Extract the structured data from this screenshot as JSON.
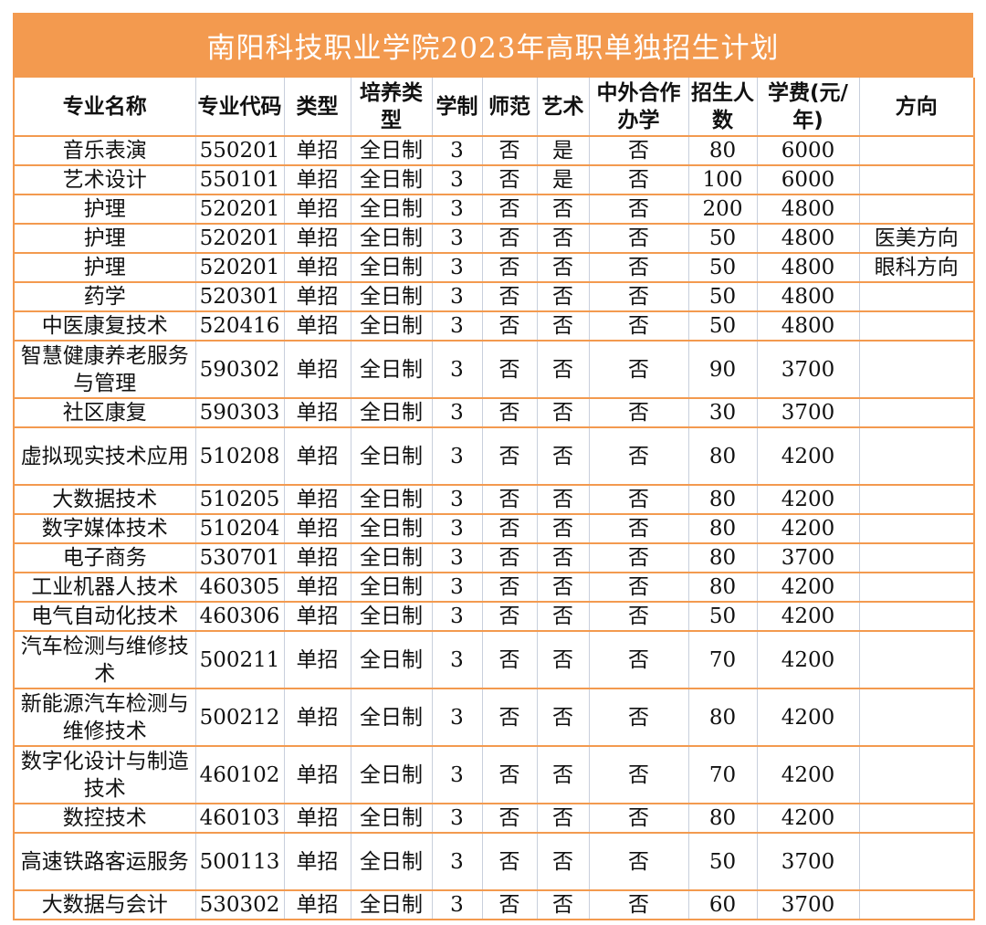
{
  "title": "南阳科技职业学院2023年高职单独招生计划",
  "columns": [
    "专业名称",
    "专业代码",
    "类型",
    "培养类型",
    "学制",
    "师范",
    "艺术",
    "中外合作办学",
    "招生人数",
    "学费(元/年)",
    "方向"
  ],
  "rows": [
    [
      "音乐表演",
      "550201",
      "单招",
      "全日制",
      "3",
      "否",
      "是",
      "否",
      "80",
      "6000",
      ""
    ],
    [
      "艺术设计",
      "550101",
      "单招",
      "全日制",
      "3",
      "否",
      "是",
      "否",
      "100",
      "6000",
      ""
    ],
    [
      "护理",
      "520201",
      "单招",
      "全日制",
      "3",
      "否",
      "否",
      "否",
      "200",
      "4800",
      ""
    ],
    [
      "护理",
      "520201",
      "单招",
      "全日制",
      "3",
      "否",
      "否",
      "否",
      "50",
      "4800",
      "医美方向"
    ],
    [
      "护理",
      "520201",
      "单招",
      "全日制",
      "3",
      "否",
      "否",
      "否",
      "50",
      "4800",
      "眼科方向"
    ],
    [
      "药学",
      "520301",
      "单招",
      "全日制",
      "3",
      "否",
      "否",
      "否",
      "50",
      "4800",
      ""
    ],
    [
      "中医康复技术",
      "520416",
      "单招",
      "全日制",
      "3",
      "否",
      "否",
      "否",
      "50",
      "4800",
      ""
    ],
    [
      "智慧健康养老服务与管理",
      "590302",
      "单招",
      "全日制",
      "3",
      "否",
      "否",
      "否",
      "90",
      "3700",
      ""
    ],
    [
      "社区康复",
      "590303",
      "单招",
      "全日制",
      "3",
      "否",
      "否",
      "否",
      "30",
      "3700",
      ""
    ],
    [
      "虚拟现实技术应用",
      "510208",
      "单招",
      "全日制",
      "3",
      "否",
      "否",
      "否",
      "80",
      "4200",
      ""
    ],
    [
      "大数据技术",
      "510205",
      "单招",
      "全日制",
      "3",
      "否",
      "否",
      "否",
      "80",
      "4200",
      ""
    ],
    [
      "数字媒体技术",
      "510204",
      "单招",
      "全日制",
      "3",
      "否",
      "否",
      "否",
      "80",
      "4200",
      ""
    ],
    [
      "电子商务",
      "530701",
      "单招",
      "全日制",
      "3",
      "否",
      "否",
      "否",
      "80",
      "3700",
      ""
    ],
    [
      "工业机器人技术",
      "460305",
      "单招",
      "全日制",
      "3",
      "否",
      "否",
      "否",
      "80",
      "4200",
      ""
    ],
    [
      "电气自动化技术",
      "460306",
      "单招",
      "全日制",
      "3",
      "否",
      "否",
      "否",
      "50",
      "4200",
      ""
    ],
    [
      "汽车检测与维修技术",
      "500211",
      "单招",
      "全日制",
      "3",
      "否",
      "否",
      "否",
      "70",
      "4200",
      ""
    ],
    [
      "新能源汽车检测与维修技术",
      "500212",
      "单招",
      "全日制",
      "3",
      "否",
      "否",
      "否",
      "80",
      "4200",
      ""
    ],
    [
      "数字化设计与制造技术",
      "460102",
      "单招",
      "全日制",
      "3",
      "否",
      "否",
      "否",
      "70",
      "4200",
      ""
    ],
    [
      "数控技术",
      "460103",
      "单招",
      "全日制",
      "3",
      "否",
      "否",
      "否",
      "80",
      "4200",
      ""
    ],
    [
      "高速铁路客运服务",
      "500113",
      "单招",
      "全日制",
      "3",
      "否",
      "否",
      "否",
      "50",
      "3700",
      ""
    ],
    [
      "大数据与会计",
      "530302",
      "单招",
      "全日制",
      "3",
      "否",
      "否",
      "否",
      "60",
      "3700",
      ""
    ]
  ],
  "colors": {
    "accent": "#f39a4f",
    "grid": "#c8cfdc"
  }
}
